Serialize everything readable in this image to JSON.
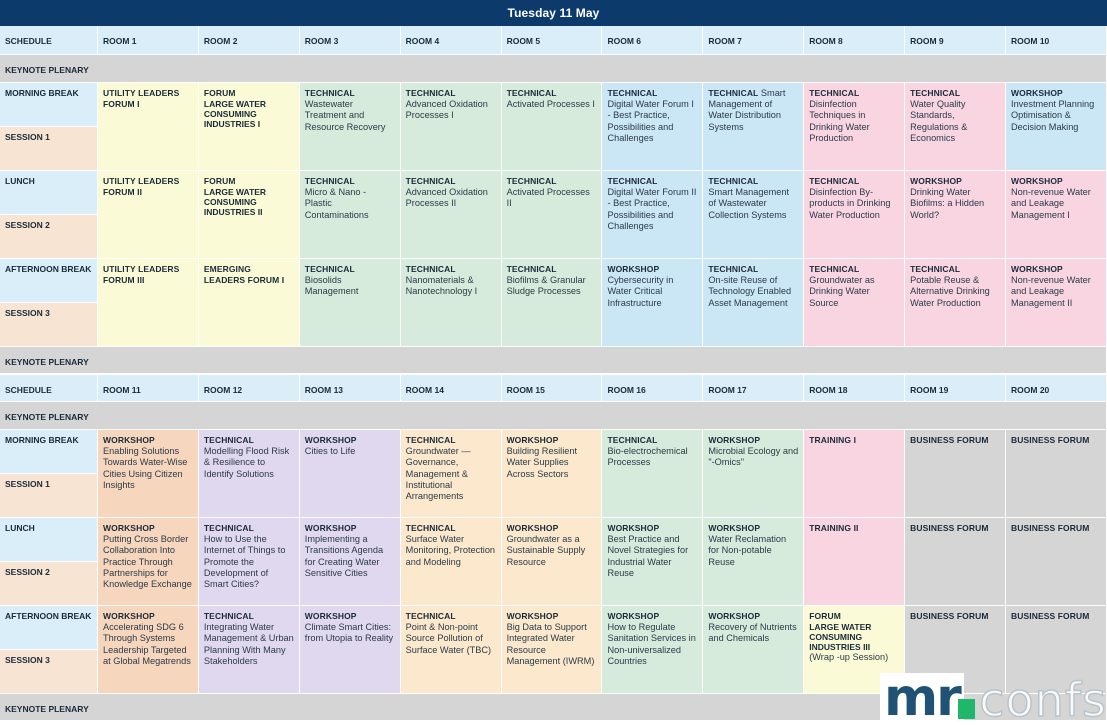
{
  "title": "Tuesday 11 May",
  "block1": {
    "schedule_label": "SCHEDULE",
    "rooms": [
      "ROOM 1",
      "ROOM 2",
      "ROOM 3",
      "ROOM 4",
      "ROOM 5",
      "ROOM 6",
      "ROOM 7",
      "ROOM 8",
      "ROOM 9",
      "ROOM 10"
    ],
    "plenary_top": "KEYNOTE PLENARY",
    "plenary_bottom": "KEYNOTE PLENARY",
    "rows": [
      {
        "break": "MORNING BREAK",
        "session": "SESSION 1",
        "cells": [
          {
            "type": "UTILITY LEADERS FORUM I",
            "title": ""
          },
          {
            "type": "FORUM",
            "bold": "LARGE WATER CONSUMING INDUSTRIES I",
            "title": ""
          },
          {
            "type": "TECHNICAL",
            "title": "Wastewater Treatment and Resource Recovery"
          },
          {
            "type": "TECHNICAL",
            "title": "Advanced Oxidation Processes I"
          },
          {
            "type": "TECHNICAL",
            "title": "Activated Processes I"
          },
          {
            "type": "TECHNICAL",
            "title": "Digital Water Forum I - Best Practice, Possibilities and Challenges"
          },
          {
            "type": "TECHNICAL",
            "title": " Smart Management of Water Distribution Systems"
          },
          {
            "type": "TECHNICAL",
            "title": "Disinfection Techniques in Drinking Water Production"
          },
          {
            "type": "TECHNICAL",
            "title": "Water Quality Standards, Regulations & Economics"
          },
          {
            "type": "WORKSHOP",
            "title": "Investment Planning Optimisation & Decision Making"
          }
        ]
      },
      {
        "break": "LUNCH",
        "session": "SESSION 2",
        "cells": [
          {
            "type": "UTILITY LEADERS FORUM II",
            "title": ""
          },
          {
            "type": "FORUM",
            "bold": "LARGE WATER CONSUMING INDUSTRIES II",
            "title": ""
          },
          {
            "type": "TECHNICAL",
            "title": "Micro & Nano - Plastic Contaminations"
          },
          {
            "type": "TECHNICAL",
            "title": "Advanced Oxidation Processes II"
          },
          {
            "type": "TECHNICAL",
            "title": "Activated Processes II"
          },
          {
            "type": "TECHNICAL",
            "title": "Digital Water Forum II - Best Practice, Possibilities and Challenges"
          },
          {
            "type": "TECHNICAL",
            "title": "Smart Management of Wastewater Collection Systems"
          },
          {
            "type": "TECHNICAL",
            "title": "Disinfection By-products in Drinking Water Production"
          },
          {
            "type": "WORKSHOP",
            "title": "Drinking Water Biofilms: a Hidden World?"
          },
          {
            "type": "WORKSHOP",
            "title": "Non-revenue Water and Leakage Management I"
          }
        ]
      },
      {
        "break": "AFTERNOON BREAK",
        "session": "SESSION 3",
        "cells": [
          {
            "type": "UTILITY LEADERS FORUM III",
            "title": ""
          },
          {
            "type": "EMERGING LEADERS FORUM I",
            "title": ""
          },
          {
            "type": "TECHNICAL",
            "title": "Biosolids Management"
          },
          {
            "type": "TECHNICAL",
            "title": "Nanomaterials & Nanotechnology I"
          },
          {
            "type": "TECHNICAL",
            "title": "Biofilms & Granular Sludge Processes"
          },
          {
            "type": "WORKSHOP",
            "title": "Cybersecurity in Water Critical Infrastructure"
          },
          {
            "type": "TECHNICAL",
            "title": "On-site Reuse of Technology Enabled Asset Management"
          },
          {
            "type": "TECHNICAL",
            "title": "Groundwater as Drinking Water Source"
          },
          {
            "type": "TECHNICAL",
            "title": "Potable Reuse & Alternative Drinking Water Production"
          },
          {
            "type": "WORKSHOP",
            "title": "Non-revenue Water and Leakage Management II"
          }
        ]
      }
    ]
  },
  "block2": {
    "schedule_label": "SCHEDULE",
    "rooms": [
      "ROOM 11",
      "ROOM 12",
      "ROOM 13",
      "ROOM 14",
      "ROOM 15",
      "ROOM 16",
      "ROOM 17",
      "ROOM 18",
      "ROOM 19",
      "ROOM 20"
    ],
    "plenary_top": "KEYNOTE PLENARY",
    "plenary_bottom": "KEYNOTE PLENARY",
    "rows": [
      {
        "break": "MORNING BREAK",
        "session": "SESSION 1",
        "cells": [
          {
            "type": "WORKSHOP",
            "title": "Enabling Solutions Towards Water-Wise Cities Using Citizen Insights"
          },
          {
            "type": "TECHNICAL",
            "title": "Modelling Flood Risk & Resilience to Identify Solutions"
          },
          {
            "type": "WORKSHOP",
            "title": "Cities to Life"
          },
          {
            "type": "TECHNICAL",
            "title": "Groundwater — Governance, Management & Institutional Arrangements"
          },
          {
            "type": "WORKSHOP",
            "title": "Building Resilient Water Supplies Across Sectors"
          },
          {
            "type": "TECHNICAL",
            "title": "Bio-electrochemical Processes"
          },
          {
            "type": "WORKSHOP",
            "title": "Microbial Ecology and \"-Omics\""
          },
          {
            "type": "TRAINING I",
            "title": ""
          },
          {
            "type": "BUSINESS FORUM",
            "title": ""
          },
          {
            "type": "BUSINESS FORUM",
            "title": ""
          }
        ]
      },
      {
        "break": "LUNCH",
        "session": "SESSION 2",
        "cells": [
          {
            "type": "WORKSHOP",
            "title": "Putting Cross Border Collaboration Into Practice Through Partnerships for Knowledge Exchange"
          },
          {
            "type": "TECHNICAL",
            "title": "How to Use the Internet of Things to Promote the Development of Smart Cities?"
          },
          {
            "type": "WORKSHOP",
            "title": "Implementing a Transitions Agenda for Creating Water Sensitive Cities"
          },
          {
            "type": "TECHNICAL",
            "title": "Surface Water Monitoring, Protection and Modeling"
          },
          {
            "type": "WORKSHOP",
            "title": "Groundwater as a Sustainable Supply Resource"
          },
          {
            "type": "WORKSHOP",
            "title": "Best Practice and Novel Strategies for Industrial Water Reuse"
          },
          {
            "type": "WORKSHOP",
            "title": "Water Reclamation for Non-potable Reuse"
          },
          {
            "type": "TRAINING II",
            "title": ""
          },
          {
            "type": "BUSINESS FORUM",
            "title": ""
          },
          {
            "type": "BUSINESS FORUM",
            "title": ""
          }
        ]
      },
      {
        "break": "AFTERNOON BREAK",
        "session": "SESSION 3",
        "cells": [
          {
            "type": "WORKSHOP",
            "title": "Accelerating SDG 6 Through Systems Leadership Targeted at Global Megatrends"
          },
          {
            "type": "TECHNICAL",
            "title": "Integrating Water Management & Urban Planning With Many Stakeholders"
          },
          {
            "type": "WORKSHOP",
            "title": "Climate Smart Cities: from Utopia to Reality"
          },
          {
            "type": "TECHNICAL",
            "title": "Point & Non-point Source Pollution of Surface Water (TBC)"
          },
          {
            "type": "WORKSHOP",
            "title": "Big Data to Support Integrated Water Resource Management (IWRM)"
          },
          {
            "type": "WORKSHOP",
            "title": "How to Regulate Sanitation Services in Non-universalized Countries"
          },
          {
            "type": "WORKSHOP",
            "title": "Recovery of Nutrients and Chemicals"
          },
          {
            "type": "FORUM",
            "bold": "LARGE WATER CONSUMING INDUSTRIES III",
            "title": "(Wrap -up Session)"
          },
          {
            "type": "BUSINESS FORUM",
            "title": ""
          },
          {
            "type": "BUSINESS FORUM",
            "title": ""
          }
        ]
      }
    ]
  },
  "colors": {
    "title_bar": "#0c3a6b",
    "header_row": "#d9eef8",
    "plenary": "#d5d5d5",
    "session": "#f8e4d3",
    "yellow": "#fafbd6",
    "green": "#d6ebdc",
    "blue": "#cbe7f6",
    "pink": "#f9d5e1",
    "orange": "#f7d6be",
    "lilac": "#e0d8ee",
    "cream": "#fce9cd",
    "grey": "#d5d5d5"
  },
  "logo": {
    "mr": "mr",
    "confs": "confs"
  }
}
